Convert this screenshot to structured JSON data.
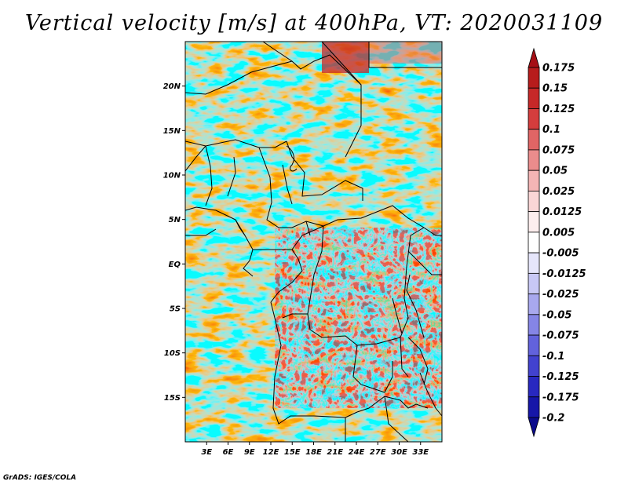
{
  "title": "Vertical velocity [m/s] at 400hPa, VT: 2020031109",
  "credit": "GrADS: IGES/COLA",
  "map": {
    "lon_range": [
      0,
      36
    ],
    "lat_range": [
      -20,
      25
    ],
    "lat_labels": [
      "20N",
      "15N",
      "10N",
      "5N",
      "EQ",
      "5S",
      "10S",
      "15S"
    ],
    "lat_values": [
      20,
      15,
      10,
      5,
      0,
      -5,
      -10,
      -15
    ],
    "lon_labels": [
      "3E",
      "6E",
      "9E",
      "12E",
      "15E",
      "18E",
      "21E",
      "24E",
      "27E",
      "30E",
      "33E"
    ],
    "lon_values": [
      3,
      6,
      9,
      12,
      15,
      18,
      21,
      24,
      27,
      30,
      33
    ]
  },
  "colorbar": {
    "labels": [
      "0.175",
      "0.15",
      "0.125",
      "0.1",
      "0.075",
      "0.05",
      "0.025",
      "0.0125",
      "0.005",
      "-0.005",
      "-0.0125",
      "-0.025",
      "-0.05",
      "-0.075",
      "-0.1",
      "-0.125",
      "-0.175",
      "-0.2"
    ],
    "colors": [
      "#a50f15",
      "#b71c1c",
      "#c62828",
      "#d43d3d",
      "#e06565",
      "#eb8c8c",
      "#f4b5b5",
      "#fad6d6",
      "#fdeeee",
      "#ffffff",
      "#e6e6fb",
      "#c8c8f5",
      "#a8a8ee",
      "#8585e6",
      "#6262dc",
      "#4242cf",
      "#2828c0",
      "#1616a8",
      "#0b0b8c"
    ]
  }
}
